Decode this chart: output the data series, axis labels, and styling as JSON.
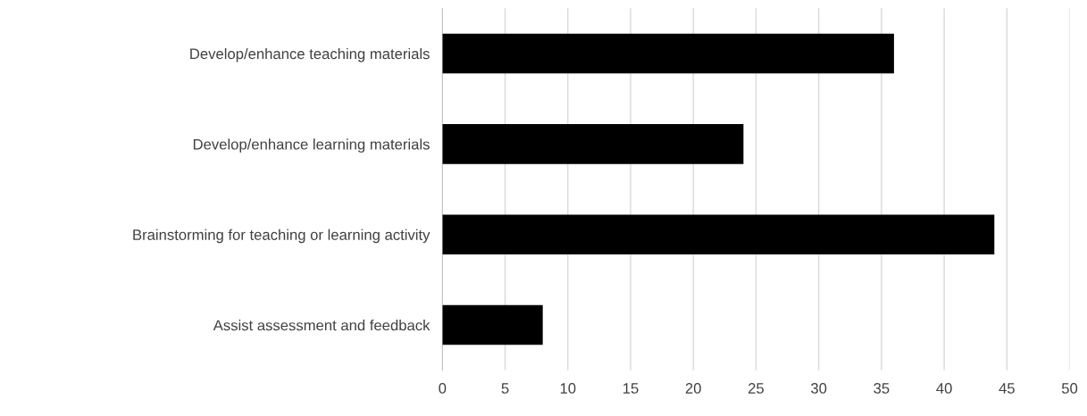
{
  "chart_data": {
    "type": "bar",
    "orientation": "horizontal",
    "categories": [
      "Develop/enhance teaching materials",
      "Develop/enhance learning materials",
      "Brainstorming for teaching or learning activity",
      "Assist assessment and feedback"
    ],
    "values": [
      36,
      24,
      44,
      8
    ],
    "color": "#000000",
    "xlim": [
      0,
      50
    ],
    "xticks": [
      0,
      5,
      10,
      15,
      20,
      25,
      30,
      35,
      40,
      45,
      50
    ],
    "grid": "x",
    "legend": false
  }
}
